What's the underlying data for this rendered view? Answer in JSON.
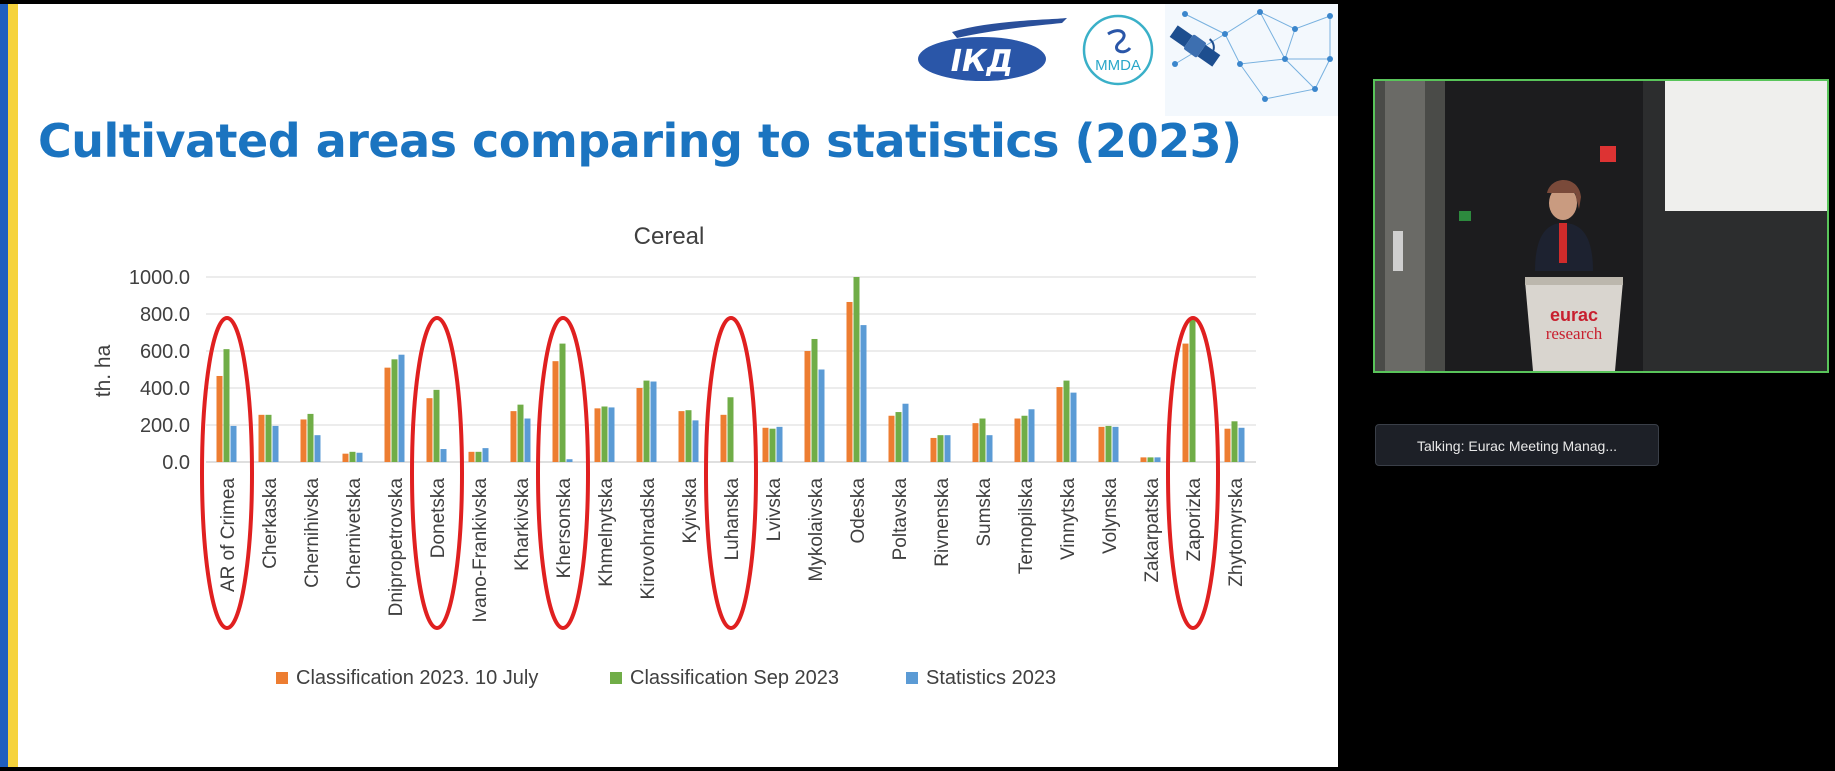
{
  "slide": {
    "title": "Cultivated areas comparing to statistics (2023)",
    "logos": [
      "ІКД",
      "MMDA"
    ],
    "brand_colors": {
      "title": "#1b74c0",
      "stripe_blue": "#1f5fbf",
      "stripe_yellow": "#f6d33c",
      "highlight_circle": "#e02020"
    }
  },
  "chart_data": {
    "type": "bar",
    "title": "Cereal",
    "xlabel": "",
    "ylabel": "th. ha",
    "ylim": [
      0,
      1000
    ],
    "yticks": [
      "1000.0",
      "800.0",
      "600.0",
      "400.0",
      "200.0",
      "0.0"
    ],
    "grid": true,
    "legend_position": "bottom",
    "categories": [
      "AR of Crimea",
      "Cherkaska",
      "Chernihivska",
      "Chernivetska",
      "Dnipropetrovska",
      "Donetska",
      "Ivano-Frankivska",
      "Kharkivska",
      "Khersonska",
      "Khmelnytska",
      "Kirovohradska",
      "Kyivska",
      "Luhanska",
      "Lvivska",
      "Mykolaivska",
      "Odeska",
      "Poltavska",
      "Rivnenska",
      "Sumska",
      "Ternopilska",
      "Vinnytska",
      "Volynska",
      "Zakarpatska",
      "Zaporizka",
      "Zhytomyrska"
    ],
    "series": [
      {
        "name": "Classification 2023. 10 July",
        "color": "#ed7d31",
        "values": [
          465,
          255,
          230,
          45,
          510,
          345,
          55,
          275,
          545,
          290,
          400,
          275,
          255,
          185,
          600,
          865,
          250,
          130,
          210,
          235,
          405,
          190,
          25,
          640,
          180
        ]
      },
      {
        "name": "Classification Sep 2023",
        "color": "#70ad47",
        "values": [
          610,
          255,
          260,
          55,
          555,
          390,
          55,
          310,
          640,
          300,
          440,
          280,
          350,
          180,
          665,
          1000,
          270,
          145,
          235,
          250,
          440,
          195,
          25,
          770,
          220
        ]
      },
      {
        "name": "Statistics 2023",
        "color": "#5b9bd5",
        "values": [
          195,
          195,
          145,
          50,
          580,
          70,
          75,
          235,
          15,
          295,
          435,
          225,
          0,
          190,
          500,
          740,
          315,
          145,
          145,
          285,
          375,
          190,
          25,
          0,
          185
        ]
      }
    ],
    "highlighted_categories": [
      "AR of Crimea",
      "Donetska",
      "Khersonska",
      "Luhanska",
      "Zaporizka"
    ]
  },
  "video": {
    "sign_text": [
      "eurac",
      "research"
    ]
  },
  "talking_indicator": {
    "text": "Talking:  Eurac  Meeting  Manag..."
  }
}
